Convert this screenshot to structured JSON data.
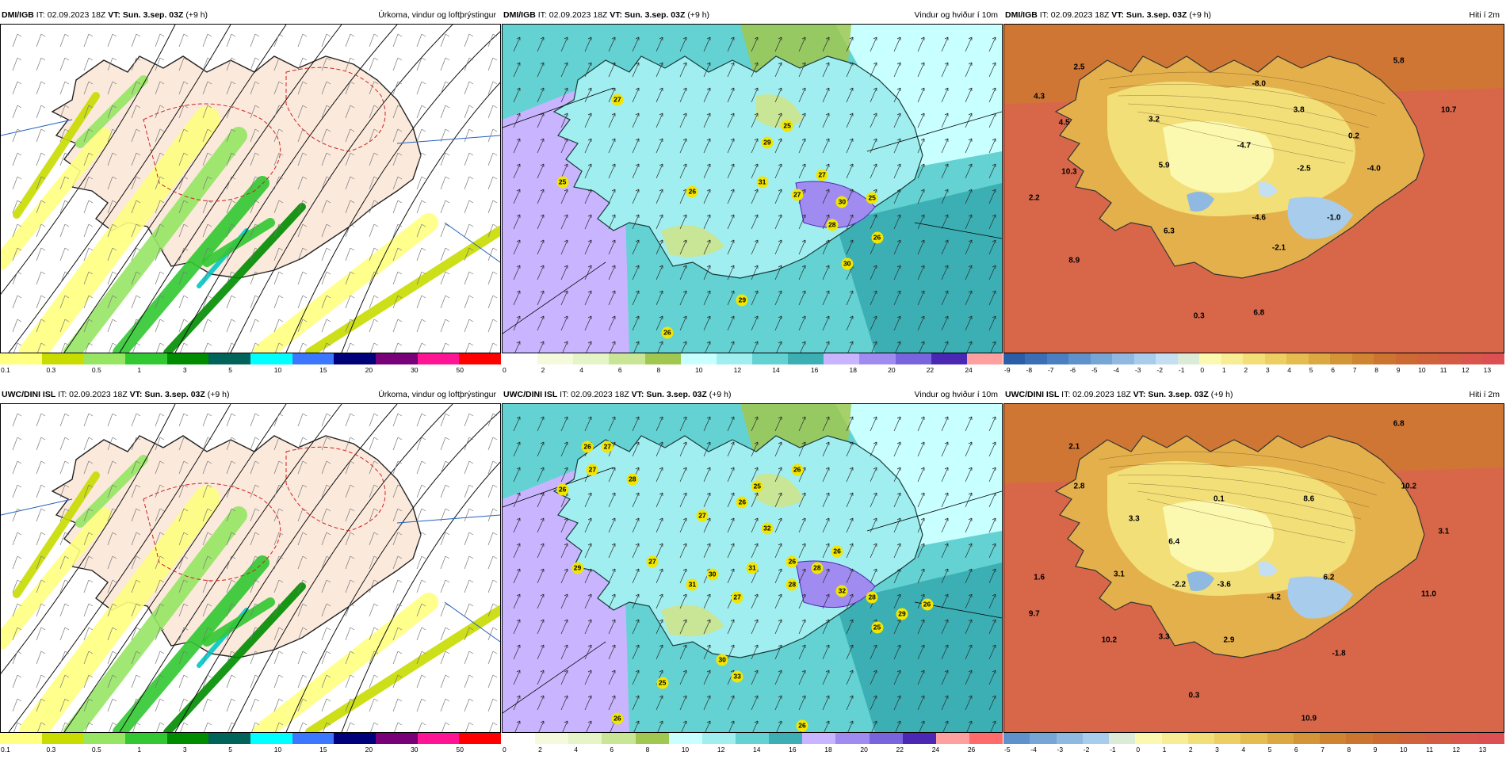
{
  "panels": [
    {
      "model": "DMI/IGB",
      "it": "IT: 02.09.2023 18Z",
      "vt": "VT: Sun. 3.sep. 03Z",
      "lead": "(+9 h)",
      "title": "Úrkoma, vindur og loftþrýstingur",
      "kind": "precip",
      "colorbar": {
        "labels": [
          "0.1",
          "0.3",
          "0.5",
          "1",
          "3",
          "5",
          "10",
          "15",
          "20",
          "30",
          "50"
        ],
        "colors": [
          "#ffff80",
          "#c8dc00",
          "#96e664",
          "#32c832",
          "#008c00",
          "#00645a",
          "#00ffff",
          "#3c78ff",
          "#00007a",
          "#780078",
          "#ff1493",
          "#ff0000"
        ]
      },
      "labels": []
    },
    {
      "model": "DMI/IGB",
      "it": "IT: 02.09.2023 18Z",
      "vt": "VT: Sun. 3.sep. 03Z",
      "lead": "(+9 h)",
      "title": "Vindur og hviður í 10m",
      "kind": "wind",
      "colorbar": {
        "labels": [
          "0",
          "2",
          "4",
          "6",
          "8",
          "10",
          "12",
          "14",
          "16",
          "18",
          "20",
          "22",
          "24"
        ],
        "colors": [
          "#ffffff",
          "#f5fadc",
          "#e6f5c8",
          "#c8e696",
          "#a0c850",
          "#c8ffff",
          "#a0eef0",
          "#64d2d2",
          "#3cafb4",
          "#c8b4ff",
          "#a08cf0",
          "#7864dc",
          "#4b28b4",
          "#ffa0a0"
        ]
      },
      "gusts": [
        "27",
        "25",
        "29",
        "25",
        "31",
        "26",
        "27",
        "27",
        "30",
        "25",
        "28",
        "26",
        "30",
        "29",
        "26"
      ]
    },
    {
      "model": "DMI/IGB",
      "it": "IT: 02.09.2023 18Z",
      "vt": "VT: Sun. 3.sep. 03Z",
      "lead": "(+9 h)",
      "title": "Hiti í 2m",
      "kind": "temp",
      "colorbar": {
        "labels": [
          "-9",
          "-8",
          "-7",
          "-6",
          "-5",
          "-4",
          "-3",
          "-2",
          "-1",
          "0",
          "1",
          "2",
          "3",
          "4",
          "5",
          "6",
          "7",
          "8",
          "9",
          "10",
          "11",
          "12",
          "13"
        ],
        "colors": [
          "#2c5ea8",
          "#3a6fb6",
          "#4a80c2",
          "#5f92cc",
          "#76a6d6",
          "#8fb9e0",
          "#a8cceb",
          "#c4def2",
          "#dcebd8",
          "#fbf8b0",
          "#f8ec94",
          "#f3df78",
          "#ecce62",
          "#e4bc50",
          "#dca842",
          "#d49538",
          "#cf8432",
          "#cc7530",
          "#cd6a34",
          "#d0623c",
          "#d45c44",
          "#d8564c",
          "#dc5054"
        ]
      },
      "labels": [
        "2.5",
        "5.8",
        "4.3",
        "-8.0",
        "4.5",
        "3.2",
        "3.8",
        "10.7",
        "-4.7",
        "0.2",
        "10.3",
        "5.9",
        "-2.5",
        "-4.0",
        "2.2",
        "-4.6",
        "-1.0",
        "6.3",
        "-2.1",
        "8.9",
        "0.3",
        "6.8"
      ]
    },
    {
      "model": "UWC/DINI ISL",
      "it": "IT: 02.09.2023 18Z",
      "vt": "VT: Sun. 3.sep. 03Z",
      "lead": "(+9 h)",
      "title": "Úrkoma, vindur og loftþrýstingur",
      "kind": "precip",
      "colorbar": {
        "labels": [
          "0.1",
          "0.3",
          "0.5",
          "1",
          "3",
          "5",
          "10",
          "15",
          "20",
          "30",
          "50"
        ],
        "colors": [
          "#ffff80",
          "#c8dc00",
          "#96e664",
          "#32c832",
          "#008c00",
          "#00645a",
          "#00ffff",
          "#3c78ff",
          "#00007a",
          "#780078",
          "#ff1493",
          "#ff0000"
        ]
      },
      "labels": []
    },
    {
      "model": "UWC/DINI ISL",
      "it": "IT: 02.09.2023 18Z",
      "vt": "VT: Sun. 3.sep. 03Z",
      "lead": "(+9 h)",
      "title": "Vindur og hviður í 10m",
      "kind": "wind",
      "colorbar": {
        "labels": [
          "0",
          "2",
          "4",
          "6",
          "8",
          "10",
          "12",
          "14",
          "16",
          "18",
          "20",
          "22",
          "24",
          "26"
        ],
        "colors": [
          "#ffffff",
          "#f5fadc",
          "#e6f5c8",
          "#c8e696",
          "#a0c850",
          "#c8ffff",
          "#a0eef0",
          "#64d2d2",
          "#3cafb4",
          "#c8b4ff",
          "#a08cf0",
          "#7864dc",
          "#4b28b4",
          "#ffa0a0",
          "#ff6a6a"
        ]
      },
      "gusts": [
        "26",
        "27",
        "27",
        "28",
        "26",
        "25",
        "26",
        "26",
        "27",
        "32",
        "29",
        "27",
        "31",
        "26",
        "28",
        "26",
        "30",
        "31",
        "28",
        "27",
        "32",
        "28",
        "29",
        "26",
        "25",
        "30",
        "33",
        "25",
        "26",
        "26"
      ]
    },
    {
      "model": "UWC/DINI ISL",
      "it": "IT: 02.09.2023 18Z",
      "vt": "VT: Sun. 3.sep. 03Z",
      "lead": "(+9 h)",
      "title": "Hiti í 2m",
      "kind": "temp",
      "colorbar": {
        "labels": [
          "-5",
          "-4",
          "-3",
          "-2",
          "-1",
          "0",
          "1",
          "2",
          "3",
          "4",
          "5",
          "6",
          "7",
          "8",
          "9",
          "10",
          "11",
          "12",
          "13"
        ],
        "colors": [
          "#5f92cc",
          "#76a6d6",
          "#8fb9e0",
          "#a8cceb",
          "#dcebd8",
          "#fbf8b0",
          "#f8ec94",
          "#f3df78",
          "#ecce62",
          "#e4bc50",
          "#dca842",
          "#d49538",
          "#cf8432",
          "#cc7530",
          "#cd6a34",
          "#d0623c",
          "#d45c44",
          "#d8564c",
          "#dc5054"
        ]
      },
      "labels": [
        "6.8",
        "2.1",
        "2.8",
        "0.1",
        "8.6",
        "10.2",
        "3.3",
        "6.4",
        "3.1",
        "1.6",
        "3.1",
        "-2.2",
        "-3.6",
        "6.2",
        "11.0",
        "-4.2",
        "9.7",
        "10.2",
        "3.3",
        "2.9",
        "-1.8",
        "0.3",
        "10.9"
      ]
    }
  ]
}
